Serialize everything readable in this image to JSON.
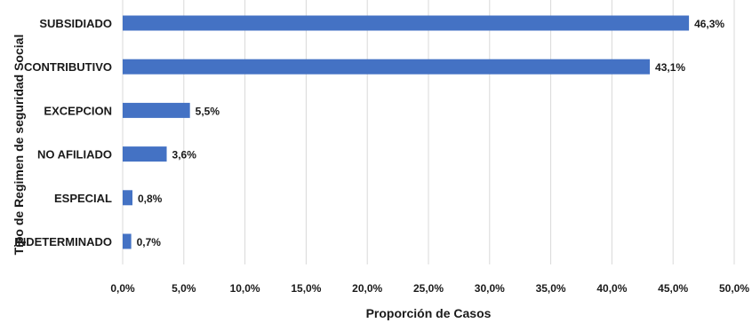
{
  "chart_data": {
    "type": "bar",
    "orientation": "horizontal",
    "categories": [
      "SUBSIDIADO",
      "CONTRIBUTIVO",
      "EXCEPCION",
      "NO AFILIADO",
      "ESPECIAL",
      "INDETERMINADO"
    ],
    "values": [
      46.3,
      43.1,
      5.5,
      3.6,
      0.8,
      0.7
    ],
    "data_labels": [
      "46,3%",
      "43,1%",
      "5,5%",
      "3,6%",
      "0,8%",
      "0,7%"
    ],
    "x_ticks": [
      "0,0%",
      "5,0%",
      "10,0%",
      "15,0%",
      "20,0%",
      "25,0%",
      "30,0%",
      "35,0%",
      "40,0%",
      "45,0%",
      "50,0%"
    ],
    "xlim": [
      0,
      50
    ],
    "xlabel": "Proporción de Casos",
    "ylabel": "Tipo de Regimen de seguridad Social",
    "grid": true,
    "bar_color": "#4472c4"
  }
}
